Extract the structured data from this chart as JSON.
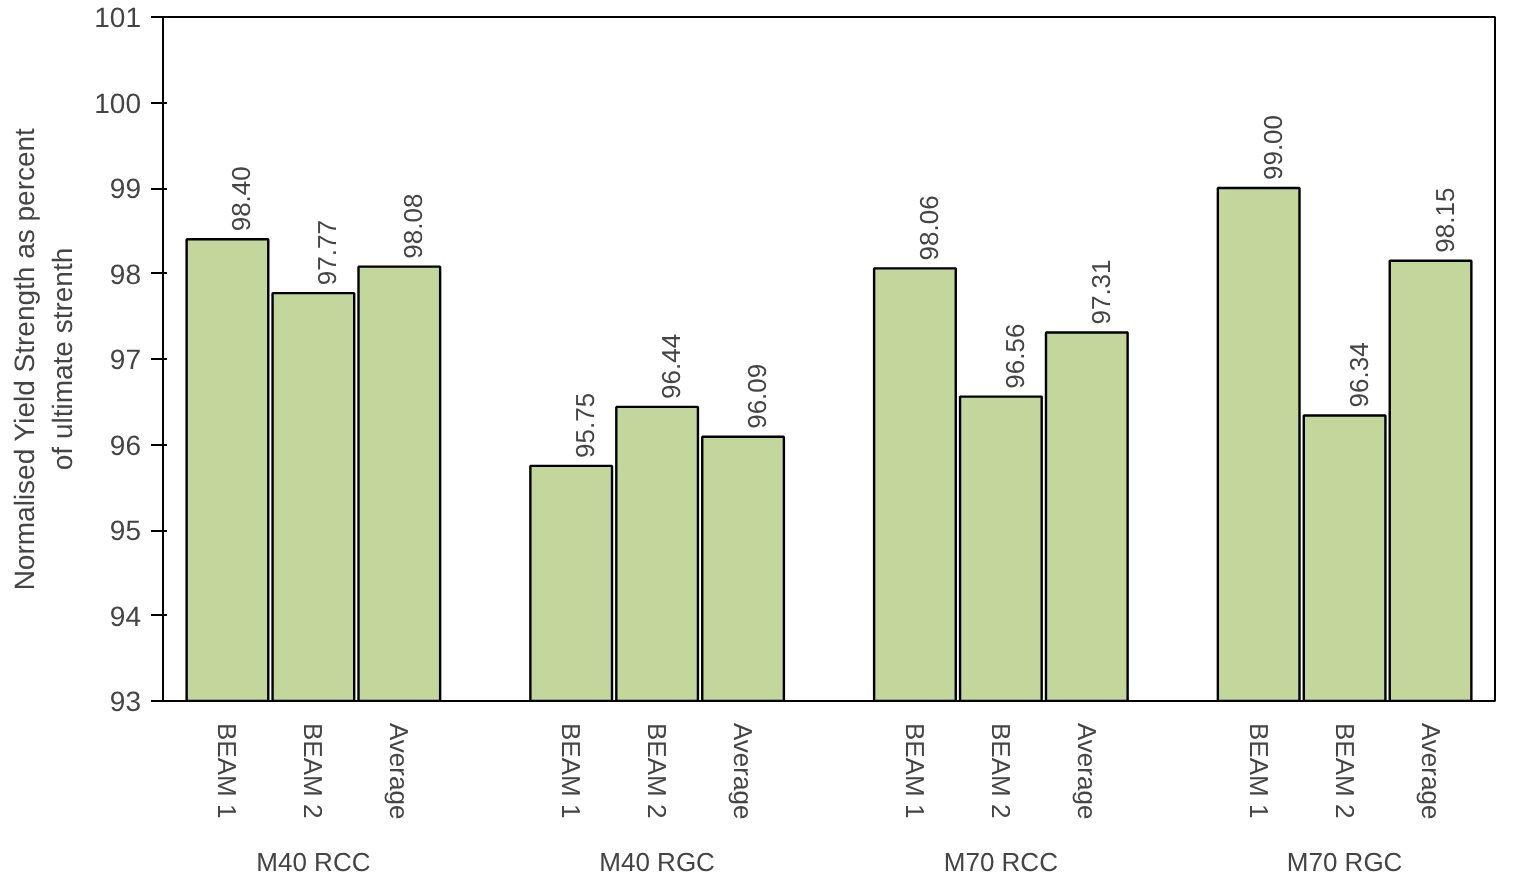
{
  "chart_data": {
    "type": "bar",
    "ylabel": "Normalised Yield Strength as percent of ultimate strenth",
    "categories": [
      "BEAM 1",
      "BEAM 2",
      "Average",
      "BEAM 1",
      "BEAM 2",
      "Average",
      "BEAM 1",
      "BEAM 2",
      "Average",
      "BEAM 1",
      "BEAM 2",
      "Average"
    ],
    "values": [
      98.4,
      97.77,
      98.08,
      95.75,
      96.44,
      96.09,
      98.06,
      96.56,
      97.31,
      99.0,
      96.34,
      98.15
    ],
    "value_labels": [
      "98.40",
      "97.77",
      "98.08",
      "95.75",
      "96.44",
      "96.09",
      "98.06",
      "96.56",
      "97.31",
      "99.00",
      "96.34",
      "98.15"
    ],
    "color": "#c3d69b",
    "annotations": [
      "M40 RCC",
      "M40 RGC",
      "M70 RCC",
      "M70 RGC"
    ],
    "ylim": [
      93,
      101
    ],
    "yticks": [
      93,
      94,
      95,
      96,
      97,
      98,
      99,
      100,
      101
    ],
    "grid": false
  }
}
